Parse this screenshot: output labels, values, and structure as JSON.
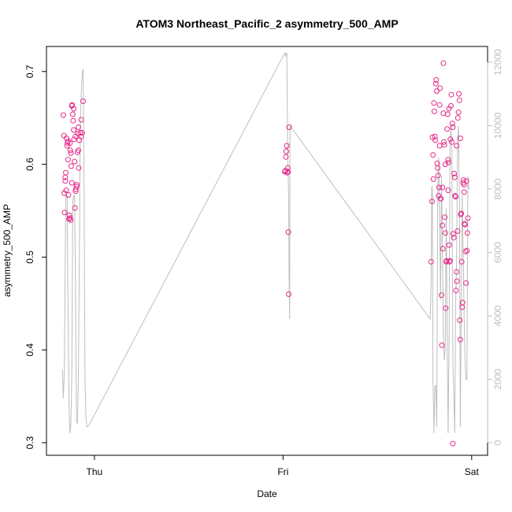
{
  "chart_data": {
    "type": "scatter",
    "title": "ATOM3 Northeast_Pacific_2 asymmetry_500_AMP",
    "xlabel": "Date",
    "ylabel": "asymmetry_500_AMP",
    "x_unit": "days",
    "x_ticks": [
      {
        "label": "Thu",
        "value": 1.0
      },
      {
        "label": "Fri",
        "value": 2.0
      },
      {
        "label": "Sat",
        "value": 3.0
      }
    ],
    "xlim": [
      0.8,
      3.03
    ],
    "ylim": [
      0.3,
      0.71
    ],
    "y_ticks": [
      0.3,
      0.4,
      0.5,
      0.6,
      0.7
    ],
    "y2lim": [
      0,
      12000
    ],
    "y2_ticks": [
      0,
      2000,
      4000,
      6000,
      8000,
      10000,
      12000
    ],
    "colors": {
      "points": "#e7298a",
      "line": "#bebebe",
      "box": "#000000"
    },
    "series": [
      {
        "marker": "circle",
        "axis": "left",
        "points": [
          [
            0.835,
            0.653
          ],
          [
            0.838,
            0.631
          ],
          [
            0.84,
            0.569
          ],
          [
            0.842,
            0.548
          ],
          [
            0.845,
            0.586
          ],
          [
            0.848,
            0.591
          ],
          [
            0.85,
            0.572
          ],
          [
            0.852,
            0.628
          ],
          [
            0.855,
            0.62
          ],
          [
            0.857,
            0.623
          ],
          [
            0.86,
            0.605
          ],
          [
            0.862,
            0.567
          ],
          [
            0.865,
            0.541
          ],
          [
            0.867,
            0.545
          ],
          [
            0.87,
            0.623
          ],
          [
            0.872,
            0.615
          ],
          [
            0.875,
            0.612
          ],
          [
            0.877,
            0.598
          ],
          [
            0.88,
            0.663
          ],
          [
            0.882,
            0.664
          ],
          [
            0.885,
            0.654
          ],
          [
            0.887,
            0.647
          ],
          [
            0.89,
            0.637
          ],
          [
            0.892,
            0.627
          ],
          [
            0.895,
            0.603
          ],
          [
            0.897,
            0.553
          ],
          [
            0.9,
            0.571
          ],
          [
            0.902,
            0.573
          ],
          [
            0.905,
            0.576
          ],
          [
            0.907,
            0.578
          ],
          [
            0.91,
            0.613
          ],
          [
            0.912,
            0.633
          ],
          [
            0.915,
            0.615
          ],
          [
            0.917,
            0.596
          ],
          [
            0.92,
            0.626
          ],
          [
            0.925,
            0.634
          ],
          [
            0.93,
            0.648
          ],
          [
            0.935,
            0.634
          ],
          [
            0.94,
            0.668
          ],
          [
            0.87,
            0.542
          ],
          [
            0.875,
            0.54
          ],
          [
            0.88,
            0.58
          ],
          [
            0.89,
            0.66
          ],
          [
            0.9,
            0.63
          ],
          [
            0.915,
            0.64
          ],
          [
            0.93,
            0.63
          ],
          [
            0.86,
            0.625
          ],
          [
            0.845,
            0.582
          ],
          [
            2.01,
            0.592
          ],
          [
            2.012,
            0.593
          ],
          [
            2.015,
            0.608
          ],
          [
            2.017,
            0.614
          ],
          [
            2.02,
            0.62
          ],
          [
            2.022,
            0.591
          ],
          [
            2.025,
            0.596
          ],
          [
            2.027,
            0.592
          ],
          [
            2.028,
            0.527
          ],
          [
            2.03,
            0.46
          ],
          [
            2.032,
            0.64
          ],
          [
            2.785,
            0.495
          ],
          [
            2.79,
            0.56
          ],
          [
            2.792,
            0.629
          ],
          [
            2.795,
            0.61
          ],
          [
            2.797,
            0.584
          ],
          [
            2.8,
            0.666
          ],
          [
            2.802,
            0.657
          ],
          [
            2.805,
            0.63
          ],
          [
            2.807,
            0.626
          ],
          [
            2.81,
            0.687
          ],
          [
            2.812,
            0.691
          ],
          [
            2.815,
            0.679
          ],
          [
            2.817,
            0.601
          ],
          [
            2.82,
            0.596
          ],
          [
            2.822,
            0.588
          ],
          [
            2.825,
            0.566
          ],
          [
            2.827,
            0.575
          ],
          [
            2.83,
            0.664
          ],
          [
            2.832,
            0.682
          ],
          [
            2.835,
            0.563
          ],
          [
            2.837,
            0.563
          ],
          [
            2.84,
            0.459
          ],
          [
            2.842,
            0.405
          ],
          [
            2.845,
            0.534
          ],
          [
            2.847,
            0.509
          ],
          [
            2.85,
            0.709
          ],
          [
            2.852,
            0.624
          ],
          [
            2.855,
            0.621
          ],
          [
            2.857,
            0.543
          ],
          [
            2.86,
            0.526
          ],
          [
            2.862,
            0.445
          ],
          [
            2.865,
            0.495
          ],
          [
            2.867,
            0.496
          ],
          [
            2.87,
            0.638
          ],
          [
            2.872,
            0.654
          ],
          [
            2.875,
            0.605
          ],
          [
            2.877,
            0.602
          ],
          [
            2.88,
            0.513
          ],
          [
            2.882,
            0.495
          ],
          [
            2.885,
            0.496
          ],
          [
            2.887,
            0.627
          ],
          [
            2.89,
            0.663
          ],
          [
            2.892,
            0.675
          ],
          [
            2.895,
            0.624
          ],
          [
            2.897,
            0.644
          ],
          [
            2.9,
            0.299
          ],
          [
            2.902,
            0.525
          ],
          [
            2.905,
            0.521
          ],
          [
            2.907,
            0.59
          ],
          [
            2.91,
            0.586
          ],
          [
            2.912,
            0.566
          ],
          [
            2.915,
            0.565
          ],
          [
            2.917,
            0.464
          ],
          [
            2.92,
            0.484
          ],
          [
            2.922,
            0.474
          ],
          [
            2.925,
            0.528
          ],
          [
            2.927,
            0.65
          ],
          [
            2.93,
            0.656
          ],
          [
            2.932,
            0.676
          ],
          [
            2.935,
            0.669
          ],
          [
            2.937,
            0.432
          ],
          [
            2.94,
            0.411
          ],
          [
            2.942,
            0.546
          ],
          [
            2.945,
            0.547
          ],
          [
            2.947,
            0.495
          ],
          [
            2.95,
            0.446
          ],
          [
            2.952,
            0.451
          ],
          [
            2.955,
            0.58
          ],
          [
            2.957,
            0.583
          ],
          [
            2.96,
            0.57
          ],
          [
            2.962,
            0.536
          ],
          [
            2.965,
            0.535
          ],
          [
            2.967,
            0.506
          ],
          [
            2.97,
            0.472
          ],
          [
            2.972,
            0.582
          ],
          [
            2.975,
            0.507
          ],
          [
            2.977,
            0.526
          ],
          [
            2.98,
            0.542
          ],
          [
            2.83,
            0.62
          ],
          [
            2.85,
            0.655
          ],
          [
            2.86,
            0.6
          ],
          [
            2.88,
            0.66
          ],
          [
            2.9,
            0.64
          ],
          [
            2.92,
            0.62
          ],
          [
            2.94,
            0.628
          ],
          [
            2.96,
            0.578
          ],
          [
            2.845,
            0.575
          ],
          [
            2.875,
            0.572
          ]
        ]
      },
      {
        "line": true,
        "axis": "right",
        "points": [
          [
            0.83,
            2300
          ],
          [
            0.835,
            1400
          ],
          [
            0.84,
            2200
          ],
          [
            0.848,
            7800
          ],
          [
            0.855,
            7800
          ],
          [
            0.86,
            4000
          ],
          [
            0.865,
            1200
          ],
          [
            0.87,
            300
          ],
          [
            0.875,
            600
          ],
          [
            0.88,
            2200
          ],
          [
            0.885,
            7600
          ],
          [
            0.89,
            7800
          ],
          [
            0.895,
            7800
          ],
          [
            0.9,
            4800
          ],
          [
            0.905,
            700
          ],
          [
            0.91,
            600
          ],
          [
            0.915,
            2000
          ],
          [
            0.92,
            5600
          ],
          [
            0.925,
            10000
          ],
          [
            0.93,
            11000
          ],
          [
            0.935,
            11600
          ],
          [
            0.94,
            11800
          ],
          [
            0.942,
            10600
          ],
          [
            0.945,
            8000
          ],
          [
            0.95,
            2000
          ],
          [
            0.955,
            800
          ],
          [
            0.96,
            500
          ],
          [
            0.97,
            540
          ],
          [
            2.01,
            12300
          ],
          [
            2.015,
            12200
          ],
          [
            2.02,
            12300
          ],
          [
            2.022,
            11000
          ],
          [
            2.025,
            9000
          ],
          [
            2.028,
            8200
          ],
          [
            2.03,
            7500
          ],
          [
            2.032,
            5200
          ],
          [
            2.035,
            3900
          ],
          [
            2.037,
            10000
          ],
          [
            2.78,
            3900
          ],
          [
            2.785,
            5000
          ],
          [
            2.788,
            8000
          ],
          [
            2.79,
            8100
          ],
          [
            2.792,
            7800
          ],
          [
            2.795,
            2000
          ],
          [
            2.8,
            300
          ],
          [
            2.805,
            1800
          ],
          [
            2.81,
            1800
          ],
          [
            2.815,
            500
          ],
          [
            2.82,
            8000
          ],
          [
            2.825,
            9000
          ],
          [
            2.83,
            7000
          ],
          [
            2.835,
            4500
          ],
          [
            2.84,
            8400
          ],
          [
            2.845,
            6100
          ],
          [
            2.85,
            3400
          ],
          [
            2.855,
            2600
          ],
          [
            2.86,
            3000
          ],
          [
            2.865,
            7400
          ],
          [
            2.87,
            3400
          ],
          [
            2.875,
            300
          ],
          [
            2.88,
            3200
          ],
          [
            2.885,
            9400
          ],
          [
            2.89,
            10000
          ],
          [
            2.895,
            9200
          ],
          [
            2.9,
            2500
          ],
          [
            2.905,
            1600
          ],
          [
            2.91,
            300
          ],
          [
            2.915,
            4400
          ],
          [
            2.92,
            5800
          ],
          [
            2.925,
            9600
          ],
          [
            2.93,
            10000
          ],
          [
            2.935,
            7600
          ],
          [
            2.94,
            500
          ],
          [
            2.945,
            4600
          ],
          [
            2.95,
            7800
          ],
          [
            2.955,
            6000
          ],
          [
            2.96,
            4000
          ],
          [
            2.965,
            2600
          ],
          [
            2.97,
            2000
          ],
          [
            2.975,
            2000
          ],
          [
            2.98,
            8400
          ],
          [
            2.985,
            8000
          ]
        ]
      }
    ],
    "grid": false,
    "legend": "none"
  }
}
